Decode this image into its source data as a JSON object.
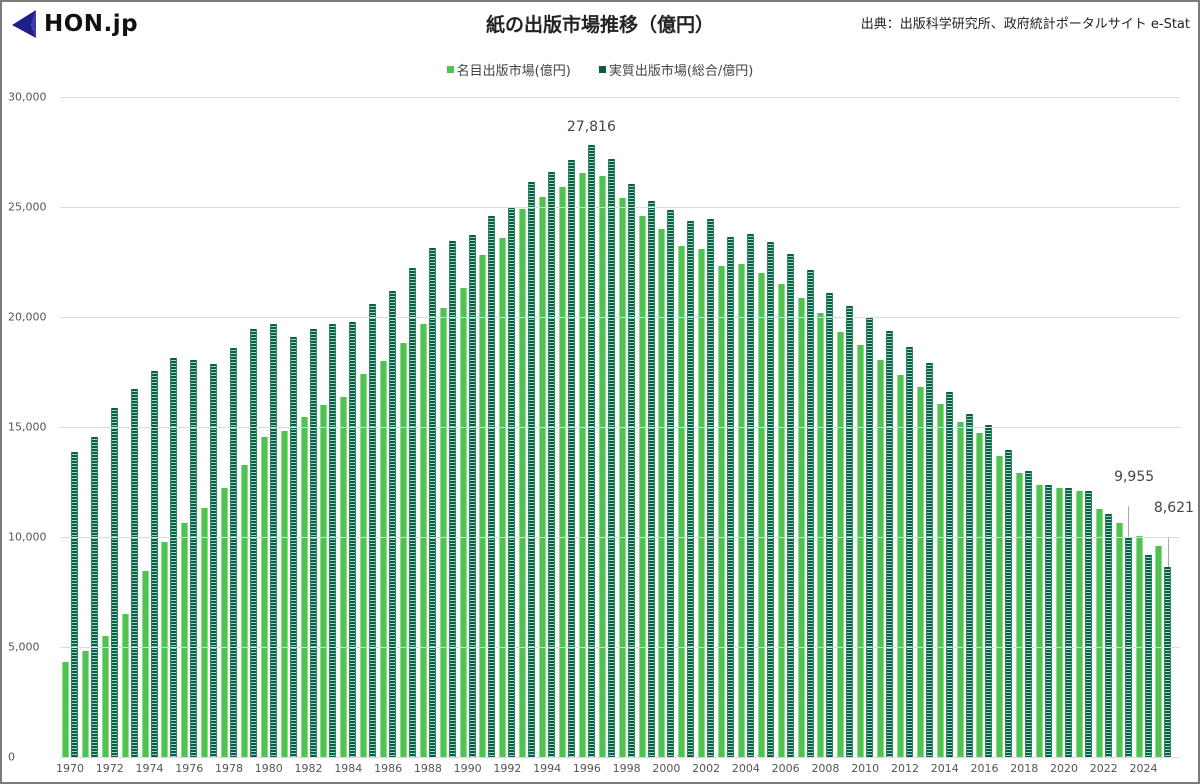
{
  "header": {
    "logo_text": "HON.jp",
    "title": "紙の出版市場推移（億円）",
    "source": "出典：出版科学研究所、政府統計ポータルサイト e-Stat"
  },
  "legend": {
    "nominal_label": "名目出版市場(億円)",
    "real_label": "実質出版市場(総合/億円)"
  },
  "colors": {
    "nominal": "#4fc24f",
    "real": "#0c5b48",
    "grid": "#dcdcdc",
    "logo": "#1f1f8a"
  },
  "annotations": {
    "peak": "27,816",
    "y2023": "9,955",
    "y2025": "8,621"
  },
  "y_ticks": [
    "30,000",
    "25,000",
    "20,000",
    "15,000",
    "10,000",
    "5,000",
    "0"
  ],
  "x_ticks": [
    "1970",
    "1972",
    "1974",
    "1976",
    "1978",
    "1980",
    "1982",
    "1984",
    "1986",
    "1988",
    "1990",
    "1992",
    "1994",
    "1996",
    "1998",
    "2000",
    "2002",
    "2004",
    "2006",
    "2008",
    "2010",
    "2012",
    "2014",
    "2016",
    "2018",
    "2020",
    "2022",
    "2024"
  ],
  "chart_data": {
    "type": "bar",
    "title": "紙の出版市場推移（億円）",
    "subtitle": "出典：出版科学研究所、政府統計ポータルサイト e-Stat",
    "xlabel": "",
    "ylabel": "億円",
    "ylim": [
      0,
      30000
    ],
    "grid": true,
    "legend_position": "top",
    "categories": [
      1970,
      1971,
      1972,
      1973,
      1974,
      1975,
      1976,
      1977,
      1978,
      1979,
      1980,
      1981,
      1982,
      1983,
      1984,
      1985,
      1986,
      1987,
      1988,
      1989,
      1990,
      1991,
      1992,
      1993,
      1994,
      1995,
      1996,
      1997,
      1998,
      1999,
      2000,
      2001,
      2002,
      2003,
      2004,
      2005,
      2006,
      2007,
      2008,
      2009,
      2010,
      2011,
      2012,
      2013,
      2014,
      2015,
      2016,
      2017,
      2018,
      2019,
      2020,
      2021,
      2022,
      2023,
      2024,
      2025
    ],
    "series": [
      {
        "name": "名目出版市場(億円)",
        "values": [
          4320,
          4820,
          5500,
          6500,
          8450,
          9770,
          10640,
          11320,
          12230,
          13270,
          14550,
          14820,
          15450,
          16000,
          16360,
          17400,
          18000,
          18800,
          19680,
          20400,
          21300,
          22800,
          23600,
          24900,
          25450,
          25900,
          26550,
          26400,
          25400,
          24600,
          24000,
          23250,
          23100,
          22300,
          22430,
          22000,
          21500,
          20850,
          20180,
          19300,
          18730,
          18040,
          17370,
          16820,
          16060,
          15220,
          14710,
          13700,
          12920,
          12360,
          12240,
          12080,
          11290,
          10630,
          10050,
          9600
        ]
      },
      {
        "name": "実質出版市場(総合/億円)",
        "values": [
          13870,
          14550,
          15860,
          16730,
          17540,
          18130,
          18050,
          17860,
          18600,
          19450,
          19680,
          19080,
          19450,
          19700,
          19770,
          20580,
          21180,
          22230,
          23140,
          23450,
          23730,
          24590,
          25000,
          26140,
          26590,
          27130,
          27816,
          27180,
          26040,
          25270,
          24860,
          24360,
          24450,
          23640,
          23770,
          23400,
          22850,
          22140,
          21100,
          20500,
          20000,
          19360,
          18640,
          17910,
          16600,
          15590,
          15090,
          13950,
          13000,
          12360,
          12230,
          12090,
          11040,
          9955,
          9180,
          8621
        ]
      }
    ],
    "annotations": [
      {
        "x": 1996,
        "series": "実質出版市場(総合/億円)",
        "label": "27,816"
      },
      {
        "x": 2023,
        "series": "実質出版市場(総合/億円)",
        "label": "9,955"
      },
      {
        "x": 2025,
        "series": "実質出版市場(総合/億円)",
        "label": "8,621"
      }
    ]
  }
}
